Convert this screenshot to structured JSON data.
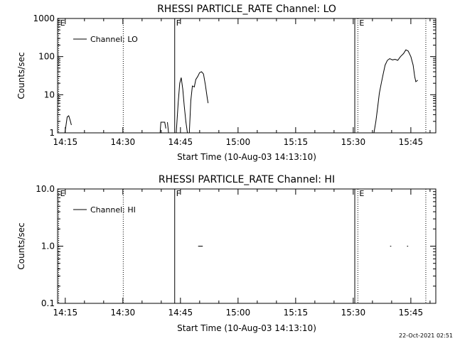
{
  "timestamp": "22-Oct-2021 02:51",
  "chart_data": [
    {
      "type": "line",
      "title": "RHESSI PARTICLE_RATE Channel: LO",
      "xlabel": "Start Time (10-Aug-03 14:13:10)",
      "ylabel": "Counts/sec",
      "yscale": "log",
      "x_unit": "minutes after 14:13:10",
      "xlim": [
        0,
        98.5
      ],
      "ylim": [
        1,
        1000
      ],
      "x_ticks": [
        {
          "x": 2,
          "label": "14:15"
        },
        {
          "x": 17,
          "label": "14:30"
        },
        {
          "x": 32,
          "label": "14:45"
        },
        {
          "x": 47,
          "label": "15:00"
        },
        {
          "x": 62,
          "label": "15:15"
        },
        {
          "x": 77,
          "label": "15:30"
        },
        {
          "x": 92,
          "label": "15:45"
        }
      ],
      "y_ticks": [
        {
          "y": 1,
          "label": "1"
        },
        {
          "y": 10,
          "label": "10"
        },
        {
          "y": 100,
          "label": "100"
        },
        {
          "y": 1000,
          "label": "1000"
        }
      ],
      "legend": {
        "label": "Channel: LO",
        "position": "top-left"
      },
      "markers": [
        {
          "x": 0.3,
          "label": "E",
          "style": "dotted"
        },
        {
          "x": 17.1,
          "label": "",
          "style": "dotted"
        },
        {
          "x": 30.5,
          "label": "F",
          "style": "solid"
        },
        {
          "x": 77.4,
          "label": "",
          "style": "solid"
        },
        {
          "x": 78.2,
          "label": "E",
          "style": "dotted"
        },
        {
          "x": 95.9,
          "label": "",
          "style": "dotted"
        }
      ],
      "series": [
        {
          "segments": [
            [
              [
                1.9,
                1
              ],
              [
                2.2,
                1.6
              ],
              [
                2.5,
                2.6
              ],
              [
                2.9,
                2.8
              ],
              [
                3.3,
                2.1
              ],
              [
                3.6,
                1.6
              ]
            ],
            [
              [
                26.7,
                1
              ],
              [
                26.9,
                1.9
              ],
              [
                27.9,
                1.9
              ],
              [
                28.2,
                1.3
              ]
            ],
            [
              [
                28.6,
                1.9
              ],
              [
                28.9,
                1
              ]
            ],
            [
              [
                30.9,
                1
              ],
              [
                31.4,
                6
              ],
              [
                31.8,
                20
              ],
              [
                32.2,
                28
              ],
              [
                32.6,
                14
              ],
              [
                33.0,
                5
              ],
              [
                33.4,
                2
              ],
              [
                33.8,
                1
              ]
            ],
            [
              [
                34.3,
                1
              ],
              [
                34.7,
                7
              ],
              [
                35.1,
                17
              ],
              [
                35.6,
                16
              ],
              [
                36.0,
                25
              ],
              [
                36.5,
                30
              ],
              [
                37.0,
                38
              ],
              [
                37.5,
                40
              ],
              [
                38.0,
                35
              ],
              [
                38.5,
                18
              ],
              [
                39.0,
                8
              ],
              [
                39.2,
                6
              ]
            ]
          ]
        },
        {
          "segments": [
            [
              [
                82.4,
                1
              ],
              [
                82.9,
                2
              ],
              [
                83.4,
                5
              ],
              [
                83.8,
                11
              ],
              [
                84.3,
                20
              ],
              [
                84.8,
                35
              ],
              [
                85.3,
                60
              ],
              [
                85.9,
                80
              ],
              [
                86.5,
                88
              ],
              [
                87.2,
                82
              ],
              [
                87.9,
                85
              ],
              [
                88.6,
                80
              ],
              [
                89.3,
                100
              ],
              [
                90.1,
                120
              ],
              [
                90.7,
                150
              ],
              [
                91.3,
                140
              ],
              [
                92.0,
                100
              ],
              [
                92.6,
                60
              ],
              [
                93.0,
                30
              ],
              [
                93.3,
                22
              ],
              [
                93.8,
                24
              ]
            ]
          ]
        }
      ]
    },
    {
      "type": "line",
      "title": "RHESSI PARTICLE_RATE Channel: HI",
      "xlabel": "Start Time (10-Aug-03 14:13:10)",
      "ylabel": "Counts/sec",
      "yscale": "log",
      "x_unit": "minutes after 14:13:10",
      "xlim": [
        0,
        98.5
      ],
      "ylim": [
        0.1,
        10
      ],
      "x_ticks": [
        {
          "x": 2,
          "label": "14:15"
        },
        {
          "x": 17,
          "label": "14:30"
        },
        {
          "x": 32,
          "label": "14:45"
        },
        {
          "x": 47,
          "label": "15:00"
        },
        {
          "x": 62,
          "label": "15:15"
        },
        {
          "x": 77,
          "label": "15:30"
        },
        {
          "x": 92,
          "label": "15:45"
        }
      ],
      "y_ticks": [
        {
          "y": 0.1,
          "label": "0.1"
        },
        {
          "y": 1,
          "label": "1.0"
        },
        {
          "y": 10,
          "label": "10.0"
        }
      ],
      "legend": {
        "label": "Channel: HI",
        "position": "top-left"
      },
      "markers": [
        {
          "x": 0.3,
          "label": "E",
          "style": "dotted"
        },
        {
          "x": 17.1,
          "label": "",
          "style": "dotted"
        },
        {
          "x": 30.5,
          "label": "F",
          "style": "solid"
        },
        {
          "x": 77.4,
          "label": "",
          "style": "solid"
        },
        {
          "x": 78.2,
          "label": "E",
          "style": "dotted"
        },
        {
          "x": 95.9,
          "label": "",
          "style": "dotted"
        }
      ],
      "series": [
        {
          "segments": [
            [
              [
                36.6,
                1
              ],
              [
                37.8,
                1
              ]
            ],
            [
              [
                86.6,
                1
              ],
              [
                86.9,
                1
              ]
            ],
            [
              [
                91.0,
                1
              ],
              [
                91.3,
                1
              ]
            ]
          ]
        }
      ]
    }
  ]
}
